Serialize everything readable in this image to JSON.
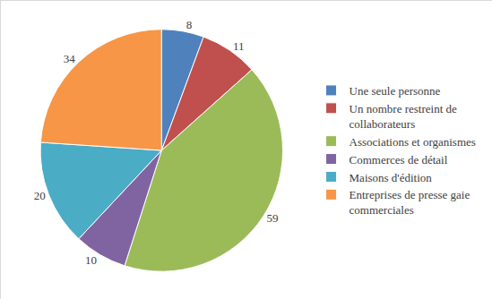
{
  "chart_data": {
    "type": "pie",
    "categories": [
      "Une seule personne",
      "Un nombre restreint de collaborateurs",
      "Associations et organismes",
      "Commerces de détail",
      "Maisons d'édition",
      "Entreprises de presse gaie commerciales"
    ],
    "values": [
      8,
      11,
      59,
      10,
      20,
      34
    ],
    "colors": [
      "#4f81bd",
      "#c0504d",
      "#9bbb59",
      "#8064a2",
      "#4bacc6",
      "#f79646"
    ],
    "legend": "right",
    "data_labels": true
  }
}
